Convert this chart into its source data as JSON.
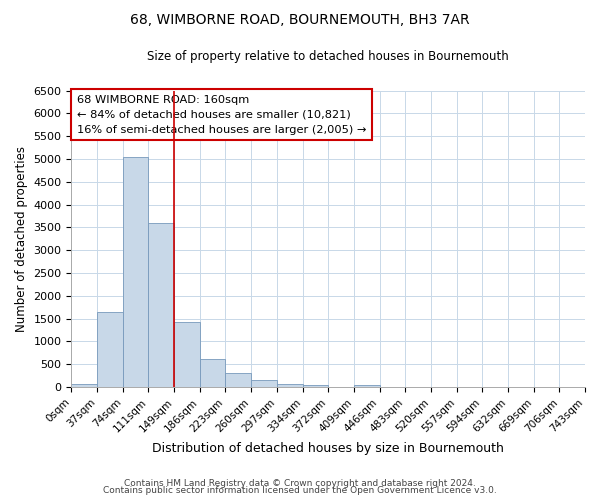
{
  "title": "68, WIMBORNE ROAD, BOURNEMOUTH, BH3 7AR",
  "subtitle": "Size of property relative to detached houses in Bournemouth",
  "xlabel": "Distribution of detached houses by size in Bournemouth",
  "ylabel": "Number of detached properties",
  "bin_labels": [
    "0sqm",
    "37sqm",
    "74sqm",
    "111sqm",
    "149sqm",
    "186sqm",
    "223sqm",
    "260sqm",
    "297sqm",
    "334sqm",
    "372sqm",
    "409sqm",
    "446sqm",
    "483sqm",
    "520sqm",
    "557sqm",
    "594sqm",
    "632sqm",
    "669sqm",
    "706sqm",
    "743sqm"
  ],
  "bar_values": [
    75,
    1650,
    5050,
    3600,
    1425,
    610,
    300,
    155,
    75,
    50,
    0,
    50,
    0,
    0,
    0,
    0,
    0,
    0,
    0,
    0
  ],
  "bar_color": "#c8d8e8",
  "bar_edge_color": "#7799bb",
  "vline_x": 4.0,
  "vline_color": "#cc0000",
  "ylim": [
    0,
    6500
  ],
  "yticks": [
    0,
    500,
    1000,
    1500,
    2000,
    2500,
    3000,
    3500,
    4000,
    4500,
    5000,
    5500,
    6000,
    6500
  ],
  "annotation_text": "68 WIMBORNE ROAD: 160sqm\n← 84% of detached houses are smaller (10,821)\n16% of semi-detached houses are larger (2,005) →",
  "annotation_box_color": "#ffffff",
  "annotation_box_edge": "#cc0000",
  "footer1": "Contains HM Land Registry data © Crown copyright and database right 2024.",
  "footer2": "Contains public sector information licensed under the Open Government Licence v3.0.",
  "bg_color": "#ffffff",
  "grid_color": "#c8d8e8"
}
